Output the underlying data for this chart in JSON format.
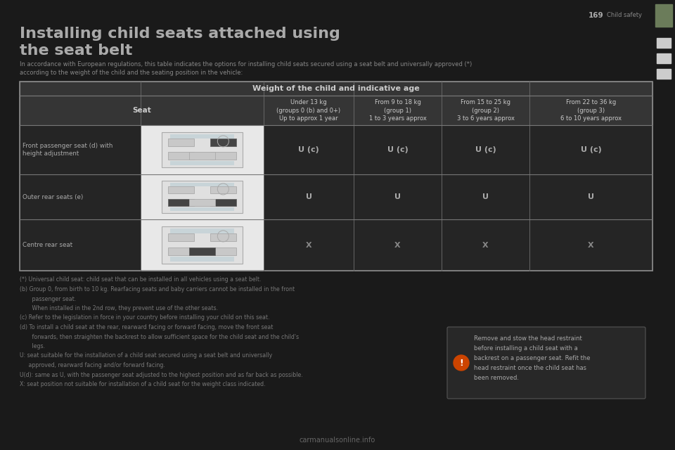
{
  "bg_color": "#1a1a1a",
  "page_num": "169",
  "section": "Child safety",
  "title_line1": "Installing child seats attached using",
  "title_line2": "the seat belt",
  "intro_line1": "In accordance with European regulations, this table indicates the options for installing child seats secured using a seat belt and universally approved (*)",
  "intro_line2": "according to the weight of the child and the seating position in the vehicle:",
  "table_header_main": "Weight of the child and indicative age",
  "col_headers": [
    "Under 13 kg\n(groups 0 (b) and 0+)\nUp to approx 1 year",
    "From 9 to 18 kg\n(group 1)\n1 to 3 years approx",
    "From 15 to 25 kg\n(group 2)\n3 to 6 years approx",
    "From 22 to 36 kg\n(group 3)\n6 to 10 years approx"
  ],
  "row_labels": [
    "Front passenger seat (d) with\nheight adjustment",
    "Outer rear seats (e)",
    "Centre rear seat"
  ],
  "cell_data": [
    [
      "U (c)",
      "U (c)",
      "U (c)",
      "U (c)"
    ],
    [
      "U",
      "U",
      "U",
      "U"
    ],
    [
      "X",
      "X",
      "X",
      "X"
    ]
  ],
  "footnote_lines": [
    "(*) Universal child seat: child seat that can be installed in all vehicles using a seat belt.",
    "(b) Group 0, from birth to 10 kg. Rearfacing seats and baby carriers cannot be installed in the front",
    "       passenger seat.",
    "       When installed in the 2nd row, they prevent use of the other seats.",
    "(c) Refer to the legislation in force in your country before installing your child on this seat.",
    "(d) To install a child seat at the rear, rearward facing or forward facing, move the front seat",
    "       forwards, then straighten the backrest to allow sufficient space for the child seat and the child's",
    "       legs.",
    "U: seat suitable for the installation of a child seat secured using a seat belt and universally",
    "     approved, rearward facing and/or forward facing.",
    "U(d): same as U, with the passenger seat adjusted to the highest position and as far back as possible.",
    "X: seat position not suitable for installation of a child seat for the weight class indicated."
  ],
  "side_note_lines": [
    "Remove and stow the head restraint",
    "before installing a child seat with a",
    "backrest on a passenger seat. Refit the",
    "head restraint once the child seat has",
    "been removed."
  ],
  "green_color": "#6b7c5a",
  "table_bg": "#252525",
  "header_bg": "#353535",
  "cell_img_bg": "#e8e8e8",
  "title_color": "#aaaaaa",
  "text_color": "#888888",
  "header_text_color": "#cccccc",
  "cell_text_color": "#999999",
  "footnote_color": "#777777",
  "side_note_color": "#aaaaaa"
}
